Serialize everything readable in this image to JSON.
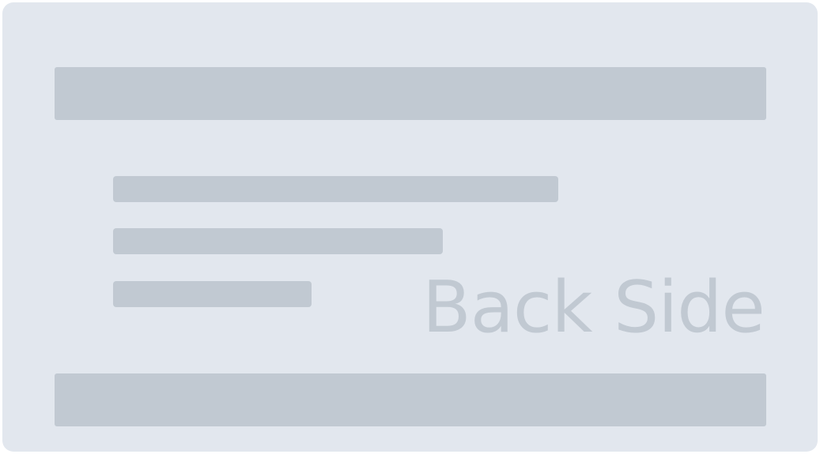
{
  "card": {
    "watermark_text": "Back Side"
  },
  "colors": {
    "card_background": "#e2e7ee",
    "placeholder_bar": "#c1c9d2",
    "watermark": "#c1c9d2"
  }
}
